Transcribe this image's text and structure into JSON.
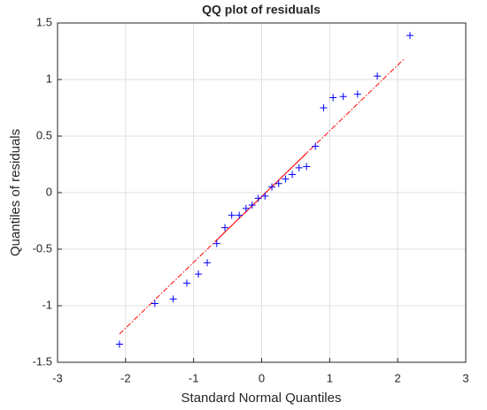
{
  "chart_data": {
    "type": "scatter",
    "title": "QQ plot of residuals",
    "x_label": "Standard Normal Quantiles",
    "y_label": "Quantiles of residuals",
    "xlim": [
      -3,
      3
    ],
    "ylim": [
      -1.5,
      1.5
    ],
    "xticks": [
      -3,
      -2,
      -1,
      0,
      1,
      2,
      3
    ],
    "yticks": [
      -1.5,
      -1,
      -0.5,
      0,
      0.5,
      1,
      1.5
    ],
    "grid": true,
    "series": [
      {
        "color": "#0000ff",
        "x": [
          -2.09,
          -1.57,
          -1.3,
          -1.1,
          -0.93,
          -0.8,
          -0.66,
          -0.54,
          -0.44,
          -0.33,
          -0.23,
          -0.14,
          -0.05,
          0.05,
          0.15,
          0.25,
          0.35,
          0.45,
          0.55,
          0.66,
          0.79,
          0.91,
          1.05,
          1.2,
          1.41,
          1.7,
          2.18
        ],
        "values": [
          -1.34,
          -0.98,
          -0.94,
          -0.8,
          -0.72,
          -0.62,
          -0.45,
          -0.31,
          -0.2,
          -0.2,
          -0.14,
          -0.11,
          -0.05,
          -0.03,
          0.05,
          0.08,
          0.12,
          0.16,
          0.22,
          0.23,
          0.41,
          0.75,
          0.84,
          0.85,
          0.87,
          1.03,
          1.39
        ]
      }
    ],
    "reference_line": {
      "color": "#ff0000",
      "x": [
        -2.09,
        2.09
      ],
      "values": [
        -1.25,
        1.18
      ],
      "solid_x": [
        -0.67,
        0.67
      ]
    }
  }
}
